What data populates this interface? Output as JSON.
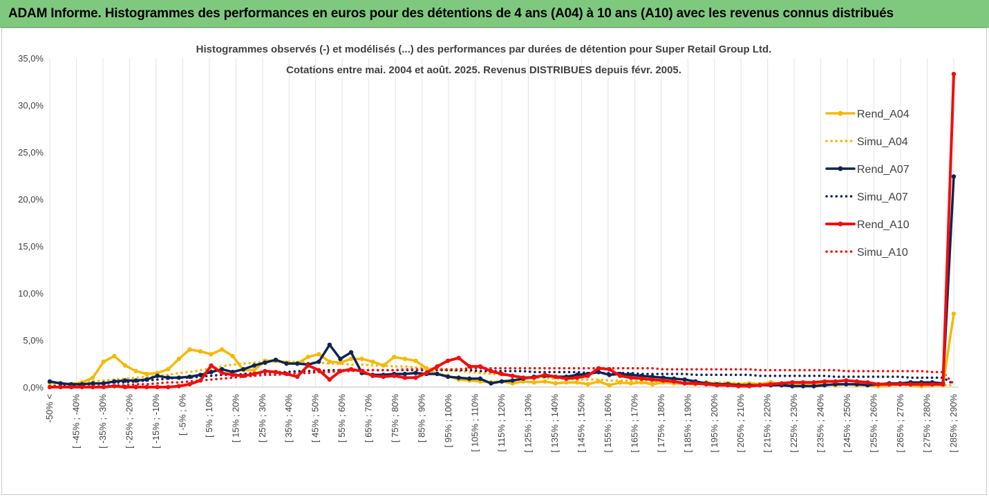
{
  "header": {
    "title": "ADAM Informe. Histogrammes des performances en euros pour des détentions de 4 ans (A04) à 10 ans (A10) avec les revenus connus distribués"
  },
  "chart_data": {
    "type": "line",
    "title_line1": "Histogrammes observés (-) et modélisés (...) des performances par durées de détention pour Super Retail Group Ltd.",
    "title_line2": "Cotations entre mai. 2004 et août. 2025.  Revenus DISTRIBUES depuis févr. 2005.",
    "xlabel": "",
    "ylabel": "",
    "ylim": [
      0,
      35
    ],
    "y_ticks": [
      "0,0%",
      "5,0%",
      "10,0%",
      "15,0%",
      "20,0%",
      "25,0%",
      "30,0%",
      "35,0%"
    ],
    "grid_vertical": true,
    "legend_position": "right",
    "x_tick_labels": [
      "-50% <",
      "[ -45% ; -40%",
      "[ -35% ; -30%",
      "[ -25% ; -20%",
      "[ -15% ; -10%",
      "[ -5% ; 0%",
      "[ 5% ; 10%",
      "[ 15% ; 20%",
      "[ 25% ; 30%",
      "[ 35% ; 40%",
      "[ 45% ; 50%",
      "[ 55% ; 60%",
      "[ 65% ; 70%",
      "[ 75% ; 80%",
      "[ 85% ; 90%",
      "[ 95% ; 100%",
      "[ 105% ; 110%",
      "[ 115% ; 120%",
      "[ 125% ; 130%",
      "[ 135% ; 140%",
      "[ 145% ; 150%",
      "[ 155% ; 160%",
      "[ 165% ; 170%",
      "[ 175% ; 180%",
      "[ 185% ; 190%",
      "[ 195% ; 200%",
      "[ 205% ; 210%",
      "[ 215% ; 220%",
      "[ 225% ; 230%",
      "[ 235% ; 240%",
      "[ 245% ; 250%",
      "[ 255% ; 260%",
      "[ 265% ; 270%",
      "[ 275% ; 280%",
      "[ 285% ; 290%"
    ],
    "series": [
      {
        "name": "Rend_A04",
        "color": "#f5b800",
        "style": "solid",
        "markers": true,
        "width": 3.5,
        "values": [
          0.5,
          0.4,
          0.3,
          0.5,
          1.0,
          2.7,
          3.3,
          2.3,
          1.7,
          1.4,
          1.5,
          1.9,
          3.0,
          4.0,
          3.8,
          3.5,
          4.0,
          3.3,
          1.8,
          1.8,
          2.8,
          2.8,
          2.6,
          2.5,
          3.2,
          3.5,
          2.7,
          2.6,
          3.0,
          3.0,
          2.7,
          2.3,
          3.2,
          3.0,
          2.8,
          2.0,
          1.4,
          1.2,
          0.8,
          0.7,
          0.6,
          0.5,
          0.6,
          0.4,
          0.6,
          0.5,
          0.6,
          0.4,
          0.5,
          0.5,
          0.3,
          0.6,
          0.2,
          0.5,
          0.4,
          0.5,
          0.3,
          0.5,
          0.4,
          0.4,
          0.3,
          0.5,
          0.3,
          0.4,
          0.3,
          0.4,
          0.3,
          0.5,
          0.3,
          0.2,
          0.3,
          0.2,
          0.3,
          0.2,
          0.3,
          0.2,
          0.2,
          0.1,
          0.2,
          0.3,
          0.2,
          0.1,
          0.2,
          0.2,
          7.8
        ]
      },
      {
        "name": "Simu_A04",
        "color": "#f5b800",
        "style": "dotted",
        "markers": false,
        "width": 3.5,
        "values": [
          0.2,
          0.3,
          0.4,
          0.5,
          0.6,
          0.7,
          0.8,
          0.9,
          1.0,
          1.1,
          1.2,
          1.3,
          1.5,
          1.6,
          1.8,
          2.0,
          2.2,
          2.4,
          2.5,
          2.6,
          2.7,
          2.7,
          2.7,
          2.7,
          2.6,
          2.6,
          2.5,
          2.5,
          2.4,
          2.4,
          2.3,
          2.3,
          2.2,
          2.2,
          2.1,
          2.0,
          1.9,
          1.8,
          1.7,
          1.6,
          1.5,
          1.4,
          1.3,
          1.2,
          1.1,
          1.0,
          1.0,
          0.9,
          0.9,
          0.8,
          0.8,
          0.8,
          0.7,
          0.7,
          0.7,
          0.6,
          0.6,
          0.6,
          0.6,
          0.5,
          0.5,
          0.5,
          0.5,
          0.5,
          0.4,
          0.4,
          0.4,
          0.4,
          0.4,
          0.4,
          0.3,
          0.3,
          0.3,
          0.3,
          0.3,
          0.3,
          0.3,
          0.3,
          0.2,
          0.2,
          0.2,
          0.2,
          0.2,
          0.2,
          0.2
        ]
      },
      {
        "name": "Rend_A07",
        "color": "#0d2454",
        "style": "solid",
        "markers": true,
        "width": 3.5,
        "values": [
          0.6,
          0.4,
          0.3,
          0.3,
          0.4,
          0.4,
          0.6,
          0.7,
          0.7,
          0.8,
          1.2,
          1.0,
          1.0,
          1.1,
          1.3,
          1.6,
          1.9,
          1.6,
          1.9,
          2.3,
          2.6,
          2.9,
          2.5,
          2.5,
          2.4,
          2.7,
          4.5,
          3.0,
          3.7,
          1.5,
          1.3,
          1.3,
          1.4,
          1.4,
          1.5,
          1.4,
          1.4,
          1.1,
          1.0,
          0.9,
          0.9,
          0.4,
          0.6,
          0.7,
          0.9,
          1.1,
          1.2,
          1.1,
          1.1,
          1.3,
          1.4,
          1.6,
          1.3,
          1.4,
          1.3,
          1.2,
          1.1,
          1.0,
          0.9,
          0.8,
          0.6,
          0.4,
          0.3,
          0.3,
          0.2,
          0.2,
          0.2,
          0.2,
          0.2,
          0.1,
          0.1,
          0.1,
          0.2,
          0.3,
          0.3,
          0.3,
          0.2,
          0.3,
          0.4,
          0.4,
          0.5,
          0.5,
          0.5,
          0.4,
          22.4
        ]
      },
      {
        "name": "Simu_A07",
        "color": "#0d2454",
        "style": "dotted",
        "markers": false,
        "width": 3.5,
        "values": [
          0.1,
          0.1,
          0.2,
          0.3,
          0.3,
          0.4,
          0.5,
          0.5,
          0.6,
          0.7,
          0.8,
          0.9,
          1.0,
          1.0,
          1.1,
          1.2,
          1.3,
          1.3,
          1.4,
          1.5,
          1.5,
          1.6,
          1.6,
          1.7,
          1.7,
          1.7,
          1.8,
          1.8,
          1.8,
          1.8,
          1.8,
          1.8,
          1.8,
          1.8,
          1.8,
          1.8,
          1.8,
          1.8,
          1.8,
          1.8,
          1.7,
          1.7,
          1.7,
          1.7,
          1.7,
          1.6,
          1.6,
          1.6,
          1.6,
          1.6,
          1.5,
          1.5,
          1.5,
          1.5,
          1.5,
          1.4,
          1.4,
          1.4,
          1.4,
          1.4,
          1.3,
          1.3,
          1.3,
          1.3,
          1.3,
          1.3,
          1.2,
          1.2,
          1.2,
          1.2,
          1.2,
          1.2,
          1.2,
          1.1,
          1.1,
          1.1,
          1.1,
          1.1,
          1.1,
          1.1,
          1.0,
          1.0,
          1.0,
          1.0,
          0.3
        ]
      },
      {
        "name": "Rend_A10",
        "color": "#f20d0d",
        "style": "solid",
        "markers": true,
        "width": 4,
        "values": [
          0.0,
          0.0,
          0.0,
          0.0,
          0.0,
          0.0,
          0.1,
          0.0,
          0.0,
          0.0,
          0.0,
          0.0,
          0.1,
          0.3,
          0.7,
          2.3,
          1.5,
          1.3,
          1.2,
          1.4,
          1.7,
          1.6,
          1.4,
          1.1,
          2.3,
          1.8,
          0.8,
          1.7,
          1.9,
          1.7,
          1.2,
          1.1,
          1.2,
          1.0,
          1.0,
          1.5,
          2.2,
          2.8,
          3.1,
          2.2,
          2.2,
          1.7,
          1.4,
          1.2,
          1.0,
          1.0,
          1.3,
          1.1,
          0.9,
          1.0,
          1.2,
          2.0,
          1.9,
          1.2,
          1.0,
          0.9,
          0.8,
          0.7,
          0.6,
          0.4,
          0.4,
          0.3,
          0.2,
          0.2,
          0.1,
          0.1,
          0.2,
          0.3,
          0.4,
          0.5,
          0.5,
          0.5,
          0.6,
          0.6,
          0.7,
          0.6,
          0.5,
          0.3,
          0.3,
          0.3,
          0.3,
          0.3,
          0.3,
          0.3,
          33.3
        ]
      },
      {
        "name": "Simu_A10",
        "color": "#f20d0d",
        "style": "dotted",
        "markers": false,
        "width": 3.5,
        "values": [
          0.0,
          0.0,
          0.0,
          0.1,
          0.1,
          0.1,
          0.2,
          0.2,
          0.3,
          0.3,
          0.4,
          0.5,
          0.5,
          0.6,
          0.7,
          0.8,
          0.9,
          1.0,
          1.1,
          1.2,
          1.3,
          1.3,
          1.4,
          1.5,
          1.5,
          1.6,
          1.6,
          1.7,
          1.7,
          1.8,
          1.8,
          1.8,
          1.8,
          1.9,
          1.9,
          1.9,
          1.9,
          1.9,
          1.9,
          2.0,
          2.0,
          2.0,
          2.0,
          2.0,
          2.0,
          2.0,
          2.0,
          2.0,
          2.0,
          2.0,
          2.0,
          2.0,
          2.0,
          2.0,
          2.0,
          2.0,
          2.0,
          1.9,
          1.9,
          1.9,
          1.9,
          1.9,
          1.9,
          1.9,
          1.9,
          1.9,
          1.8,
          1.8,
          1.8,
          1.8,
          1.8,
          1.8,
          1.8,
          1.8,
          1.7,
          1.7,
          1.7,
          1.7,
          1.7,
          1.7,
          1.7,
          1.7,
          1.6,
          1.6,
          0.3
        ]
      }
    ]
  }
}
